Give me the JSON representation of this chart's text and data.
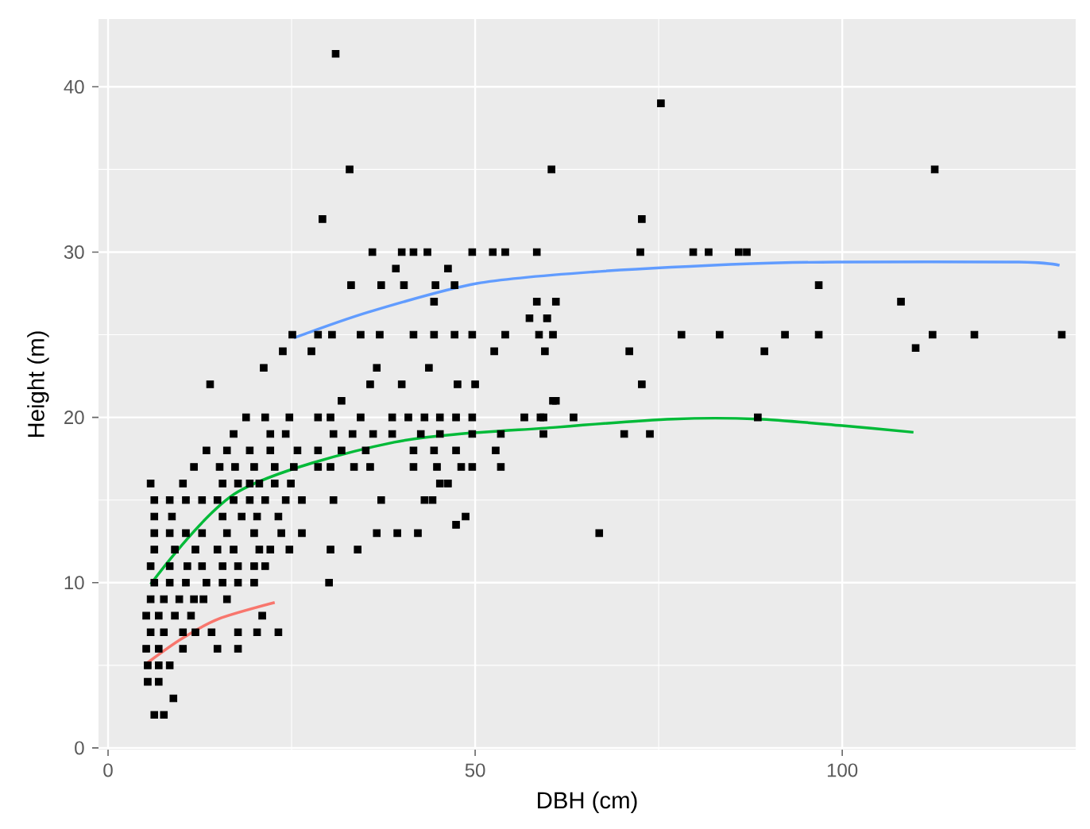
{
  "chart_data": {
    "type": "scatter",
    "xlabel": "DBH (cm)",
    "ylabel": "Height (m)",
    "xlim": [
      -1.3,
      131.8
    ],
    "ylim": [
      -0.1,
      44.1
    ],
    "xticks": [
      0,
      50,
      100
    ],
    "yticks": [
      0,
      10,
      20,
      30,
      40
    ],
    "grid": true,
    "series": [
      {
        "color": "#000000",
        "marker": "square",
        "x": [
          31,
          32.9,
          29.2,
          36,
          40,
          41.6,
          43.5,
          49.6,
          52.4,
          54.1,
          58.4,
          39.2,
          46.3,
          33.1,
          37.2,
          40.3,
          44.6,
          47.2,
          44.4,
          58.4,
          57.4,
          59.8,
          25.1,
          28.6,
          30.5,
          34.4,
          37,
          41.6,
          44.4,
          47.2,
          49.6,
          54.1,
          58.7,
          60.6,
          23.8,
          27.7,
          52.6,
          59.5,
          21.2,
          36.6,
          43.7,
          13.9,
          35.7,
          40,
          47.6,
          50,
          31.8,
          60.6,
          75.3,
          60.4,
          112.6,
          72.7,
          72.5,
          79.7,
          81.8,
          85.9,
          87,
          96.8,
          61,
          108,
          59.8,
          78.1,
          83.3,
          92.2,
          96.8,
          112.3,
          118,
          129.9,
          71,
          89.4,
          110,
          72.7,
          61,
          59.3,
          63.4,
          88.5,
          59.3,
          70.3,
          73.8,
          66.9,
          18.8,
          21.4,
          24.7,
          28.6,
          30.3,
          34.4,
          38.7,
          40.9,
          43.1,
          45.2,
          47.4,
          49.6,
          56.7,
          58.9,
          17.1,
          22.1,
          24.2,
          30.7,
          33.3,
          36.1,
          38.7,
          42.6,
          45.2,
          49.6,
          53.5,
          13.4,
          16.2,
          19.3,
          22.1,
          25.8,
          28.6,
          31.8,
          35.1,
          41.6,
          44.4,
          47.4,
          52.8,
          11.7,
          15.2,
          17.3,
          19.9,
          22.7,
          25.3,
          28.6,
          30.3,
          33.5,
          35.7,
          41.6,
          44.8,
          48.1,
          49.6,
          53.5,
          5.8,
          10.2,
          15.6,
          17.7,
          19.3,
          20.6,
          22.7,
          24.9,
          45.2,
          46.3,
          6.3,
          8.4,
          10.6,
          12.8,
          14.9,
          17.1,
          19.3,
          21.4,
          24.2,
          26.4,
          30.7,
          37.2,
          43.1,
          44.2,
          6.3,
          8.7,
          15.6,
          18.2,
          20.3,
          23.2,
          48.7,
          47.4,
          6.3,
          8.4,
          10.6,
          12.8,
          16.2,
          19.9,
          23.6,
          26.4,
          36.6,
          39.4,
          42.2,
          6.3,
          9.1,
          11.9,
          14.9,
          17.1,
          20.6,
          22.1,
          24.7,
          30.3,
          34,
          5.8,
          8.4,
          10.8,
          12.8,
          15.6,
          17.7,
          19.9,
          21.4,
          6.3,
          8.4,
          10.6,
          13.4,
          15.6,
          17.7,
          19.9,
          30.1,
          5.8,
          7.6,
          9.7,
          11.7,
          13,
          16.2,
          5.2,
          6.9,
          9.1,
          11.3,
          21,
          5.8,
          7.6,
          10.2,
          11.9,
          14.1,
          17.7,
          20.3,
          23.2,
          5.2,
          6.9,
          10.2,
          14.9,
          17.7,
          5.4,
          6.9,
          8.4,
          5.4,
          6.9,
          8.9,
          6.3,
          7.6
        ],
        "values": [
          42,
          35,
          32,
          30,
          30,
          30,
          30,
          30,
          30,
          30,
          30,
          29,
          29,
          28,
          28,
          28,
          28,
          28,
          27,
          27,
          26,
          26,
          25,
          25,
          25,
          25,
          25,
          25,
          25,
          25,
          25,
          25,
          25,
          25,
          24,
          24,
          24,
          24,
          23,
          23,
          23,
          22,
          22,
          22,
          22,
          22,
          21,
          21,
          39,
          35,
          35,
          32,
          30,
          30,
          30,
          30,
          30,
          28,
          27,
          27,
          26,
          25,
          25,
          25,
          25,
          25,
          25,
          25,
          24,
          24,
          24.2,
          22,
          21,
          20,
          20,
          20,
          19,
          19,
          19,
          13,
          20,
          20,
          20,
          20,
          20,
          20,
          20,
          20,
          20,
          20,
          20,
          20,
          20,
          20,
          19,
          19,
          19,
          19,
          19,
          19,
          19,
          19,
          19,
          19,
          19,
          18,
          18,
          18,
          18,
          18,
          18,
          18,
          18,
          18,
          18,
          18,
          18,
          17,
          17,
          17,
          17,
          17,
          17,
          17,
          17,
          17,
          17,
          17,
          17,
          17,
          17,
          17,
          16,
          16,
          16,
          16,
          16,
          16,
          16,
          16,
          16,
          16,
          15,
          15,
          15,
          15,
          15,
          15,
          15,
          15,
          15,
          15,
          15,
          15,
          15,
          15,
          14,
          14,
          14,
          14,
          14,
          14,
          14,
          13.5,
          13,
          13,
          13,
          13,
          13,
          13,
          13,
          13,
          13,
          13,
          13,
          12,
          12,
          12,
          12,
          12,
          12,
          12,
          12,
          12,
          12,
          11,
          11,
          11,
          11,
          11,
          11,
          11,
          11,
          10,
          10,
          10,
          10,
          10,
          10,
          10,
          10,
          9,
          9,
          9,
          9,
          9,
          9,
          8,
          8,
          8,
          8,
          8,
          7,
          7,
          7,
          7,
          7,
          7,
          7,
          7,
          6,
          6,
          6,
          6,
          6,
          5,
          5,
          5,
          4,
          4,
          3,
          2,
          2
        ]
      },
      {
        "type": "line",
        "marker": "none",
        "color": "#f8766d",
        "x": [
          5.2,
          10,
          15,
          22.7
        ],
        "values": [
          5.1,
          6.6,
          7.8,
          8.8
        ]
      },
      {
        "type": "line",
        "marker": "none",
        "color": "#00ba38",
        "x": [
          5.8,
          17.7,
          39,
          61,
          77,
          88.5,
          100,
          109.7
        ],
        "values": [
          9.9,
          15.5,
          18.5,
          19.4,
          19.9,
          19.9,
          19.5,
          19.1
        ]
      },
      {
        "type": "line",
        "marker": "none",
        "color": "#619cff",
        "x": [
          25.3,
          35.7,
          50.2,
          66,
          87.7,
          100,
          124,
          129.6
        ],
        "values": [
          24.8,
          26.4,
          28.1,
          28.8,
          29.3,
          29.4,
          29.4,
          29.2
        ]
      }
    ]
  }
}
